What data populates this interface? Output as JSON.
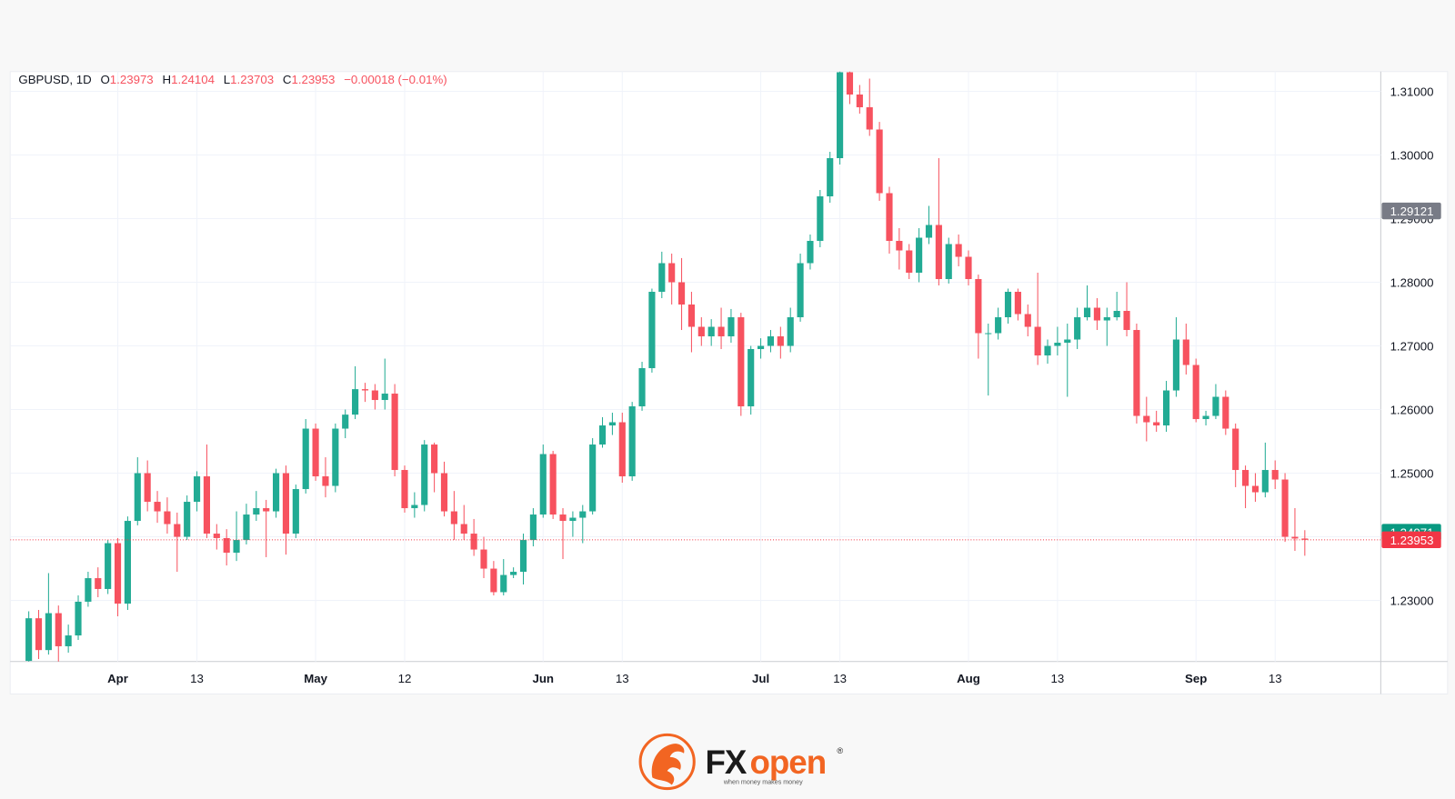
{
  "chart_data": {
    "type": "candlestick",
    "symbol": "GBPUSD, 1D",
    "ohlc_labels": [
      "O",
      "H",
      "L",
      "C"
    ],
    "change": "−0.00018 (−0.01%)",
    "up_color": "#22ab94",
    "down_color": "#f7525f",
    "grid": true,
    "categories": [
      null,
      null,
      null,
      null,
      null,
      null,
      null,
      null,
      null,
      "Apr",
      null,
      null,
      null,
      null,
      null,
      null,
      null,
      "13",
      null,
      null,
      null,
      null,
      null,
      null,
      null,
      null,
      null,
      null,
      null,
      "May",
      null,
      null,
      null,
      null,
      null,
      null,
      null,
      null,
      "12",
      null,
      null,
      null,
      null,
      null,
      null,
      null,
      null,
      null,
      null,
      null,
      null,
      null,
      "Jun",
      null,
      null,
      null,
      null,
      null,
      null,
      null,
      "13",
      null,
      null,
      null,
      null,
      null,
      null,
      null,
      null,
      null,
      null,
      null,
      null,
      null,
      "Jul",
      null,
      null,
      null,
      null,
      null,
      null,
      null,
      "13",
      null,
      null,
      null,
      null,
      null,
      null,
      null,
      null,
      null,
      null,
      null,
      null,
      "Aug",
      null,
      null,
      null,
      null,
      null,
      null,
      null,
      null,
      "13",
      null,
      null,
      null,
      null,
      null,
      null,
      null,
      null,
      null,
      null,
      null,
      null,
      null,
      "Sep",
      null,
      null,
      null,
      null,
      null,
      null,
      null,
      "13",
      null,
      null,
      null
    ],
    "open": [
      1.2205,
      1.2272,
      1.2222,
      1.228,
      1.2228,
      1.2245,
      1.2298,
      1.2335,
      1.2318,
      1.239,
      1.2295,
      1.2425,
      1.25,
      1.2455,
      1.244,
      1.242,
      1.24,
      1.2455,
      1.2495,
      1.2405,
      1.2398,
      1.2375,
      1.2395,
      1.2435,
      1.2445,
      1.244,
      1.25,
      1.2405,
      1.2475,
      1.257,
      1.2495,
      1.248,
      1.257,
      1.2592,
      1.2632,
      1.263,
      1.2615,
      1.2625,
      1.2505,
      1.2445,
      1.245,
      1.2545,
      1.25,
      1.244,
      1.242,
      1.2405,
      1.238,
      1.235,
      1.2313,
      1.234,
      1.2345,
      1.2395,
      1.2435,
      1.253,
      1.2435,
      1.2425,
      1.243,
      1.244,
      1.2545,
      1.2575,
      1.258,
      1.2495,
      1.2605,
      1.2665,
      1.2785,
      1.283,
      1.28,
      1.2765,
      1.273,
      1.2715,
      1.273,
      1.2715,
      1.2745,
      1.2605,
      1.2695,
      1.27,
      1.2715,
      1.27,
      1.2745,
      1.283,
      1.2865,
      1.2935,
      1.2995,
      1.313,
      1.3095,
      1.3075,
      1.304,
      1.294,
      1.2865,
      1.285,
      1.2815,
      1.287,
      1.289,
      1.2805,
      1.286,
      1.284,
      1.2805,
      1.272,
      1.272,
      1.2745,
      1.2785,
      1.275,
      1.273,
      1.2685,
      1.27,
      1.2705,
      1.271,
      1.2745,
      1.276,
      1.274,
      1.2745,
      1.2755,
      1.2725,
      1.259,
      1.258,
      1.2575,
      1.263,
      1.271,
      1.267,
      1.2585,
      1.259,
      1.262,
      1.257,
      1.2505,
      1.248,
      1.247,
      1.2505,
      1.249,
      1.24,
      1.23973
    ],
    "high": [
      1.2283,
      1.2285,
      1.2343,
      1.2292,
      1.2262,
      1.2308,
      1.2345,
      1.2352,
      1.2395,
      1.2398,
      1.2432,
      1.2525,
      1.252,
      1.2472,
      1.2462,
      1.2438,
      1.2465,
      1.2503,
      1.2545,
      1.242,
      1.2412,
      1.244,
      1.2452,
      1.2472,
      1.2458,
      1.2507,
      1.2512,
      1.2482,
      1.2585,
      1.2578,
      1.2525,
      1.2578,
      1.26,
      1.2668,
      1.2642,
      1.264,
      1.268,
      1.264,
      1.2512,
      1.247,
      1.2552,
      1.2548,
      1.2518,
      1.2472,
      1.245,
      1.2428,
      1.24,
      1.2362,
      1.2365,
      1.2352,
      1.2405,
      1.2445,
      1.2545,
      1.2535,
      1.2445,
      1.244,
      1.245,
      1.2555,
      1.2588,
      1.2595,
      1.2595,
      1.2612,
      1.2675,
      1.279,
      1.2848,
      1.2845,
      1.2838,
      1.2785,
      1.2745,
      1.2742,
      1.276,
      1.2758,
      1.2752,
      1.27,
      1.2712,
      1.2725,
      1.273,
      1.276,
      1.2845,
      1.2875,
      1.2945,
      1.3005,
      1.3135,
      1.3142,
      1.311,
      1.312,
      1.3052,
      1.295,
      1.2885,
      1.286,
      1.2885,
      1.292,
      1.2995,
      1.287,
      1.2875,
      1.285,
      1.2812,
      1.2735,
      1.276,
      1.279,
      1.279,
      1.2765,
      1.2815,
      1.271,
      1.273,
      1.2735,
      1.276,
      1.2795,
      1.2775,
      1.276,
      1.2785,
      1.28,
      1.2735,
      1.262,
      1.2598,
      1.2645,
      1.2745,
      1.2735,
      1.268,
      1.2598,
      1.264,
      1.263,
      1.2578,
      1.2512,
      1.25,
      1.2548,
      1.252,
      1.25,
      1.2445,
      1.24104
    ],
    "low": [
      1.2198,
      1.2208,
      1.2215,
      1.22,
      1.2218,
      1.2238,
      1.229,
      1.2305,
      1.231,
      1.2275,
      1.2285,
      1.2418,
      1.244,
      1.2422,
      1.2405,
      1.2345,
      1.2395,
      1.244,
      1.2398,
      1.238,
      1.2355,
      1.2362,
      1.2388,
      1.2425,
      1.2368,
      1.243,
      1.2372,
      1.2398,
      1.2468,
      1.2488,
      1.2462,
      1.247,
      1.2555,
      1.2585,
      1.2612,
      1.26,
      1.26,
      1.2495,
      1.2438,
      1.243,
      1.244,
      1.247,
      1.2432,
      1.2395,
      1.2395,
      1.237,
      1.2335,
      1.2308,
      1.2308,
      1.2335,
      1.2325,
      1.2385,
      1.243,
      1.2428,
      1.2365,
      1.24,
      1.239,
      1.2435,
      1.254,
      1.256,
      1.2485,
      1.2488,
      1.2598,
      1.2658,
      1.2775,
      1.2765,
      1.2725,
      1.269,
      1.27,
      1.27,
      1.2695,
      1.2705,
      1.259,
      1.2592,
      1.268,
      1.269,
      1.268,
      1.269,
      1.2738,
      1.282,
      1.2855,
      1.2925,
      1.2985,
      1.308,
      1.3065,
      1.303,
      1.2928,
      1.2845,
      1.282,
      1.2805,
      1.28,
      1.286,
      1.2795,
      1.2798,
      1.2825,
      1.2795,
      1.268,
      1.2622,
      1.271,
      1.2735,
      1.274,
      1.2715,
      1.267,
      1.2672,
      1.2685,
      1.262,
      1.2695,
      1.274,
      1.2725,
      1.27,
      1.274,
      1.2715,
      1.2578,
      1.255,
      1.2565,
      1.2565,
      1.262,
      1.2655,
      1.258,
      1.2575,
      1.2585,
      1.256,
      1.2478,
      1.2445,
      1.2455,
      1.2462,
      1.2475,
      1.2392,
      1.2378,
      1.23703
    ],
    "close": [
      1.2272,
      1.2222,
      1.228,
      1.2228,
      1.2245,
      1.2298,
      1.2335,
      1.2318,
      1.239,
      1.2295,
      1.2425,
      1.25,
      1.2455,
      1.244,
      1.242,
      1.24,
      1.2455,
      1.2495,
      1.2405,
      1.2398,
      1.2375,
      1.2395,
      1.2435,
      1.2445,
      1.244,
      1.25,
      1.2405,
      1.2475,
      1.257,
      1.2495,
      1.248,
      1.257,
      1.2592,
      1.2632,
      1.263,
      1.2615,
      1.2625,
      1.2505,
      1.2445,
      1.245,
      1.2545,
      1.25,
      1.244,
      1.242,
      1.2405,
      1.238,
      1.235,
      1.2313,
      1.234,
      1.2345,
      1.2395,
      1.2435,
      1.253,
      1.2435,
      1.2425,
      1.243,
      1.244,
      1.2545,
      1.2575,
      1.258,
      1.2495,
      1.2605,
      1.2665,
      1.2785,
      1.283,
      1.28,
      1.2765,
      1.273,
      1.2715,
      1.273,
      1.2715,
      1.2745,
      1.2605,
      1.2695,
      1.27,
      1.2715,
      1.27,
      1.2745,
      1.283,
      1.2865,
      1.2935,
      1.2995,
      1.313,
      1.3095,
      1.3075,
      1.304,
      1.294,
      1.2865,
      1.285,
      1.2815,
      1.287,
      1.289,
      1.2805,
      1.286,
      1.284,
      1.2805,
      1.272,
      1.272,
      1.2745,
      1.2785,
      1.275,
      1.273,
      1.2685,
      1.27,
      1.2705,
      1.271,
      1.2745,
      1.276,
      1.274,
      1.2745,
      1.2755,
      1.2725,
      1.259,
      1.258,
      1.2575,
      1.263,
      1.271,
      1.267,
      1.2585,
      1.259,
      1.262,
      1.257,
      1.2505,
      1.248,
      1.247,
      1.2505,
      1.249,
      1.24,
      1.23973,
      1.23953
    ],
    "ylim": [
      1.2204,
      1.3131
    ],
    "yticks": [
      {
        "value": 1.31,
        "label": "1.31000"
      },
      {
        "value": 1.3,
        "label": "1.30000"
      },
      {
        "value": 1.29,
        "label": "1.29000"
      },
      {
        "value": 1.28,
        "label": "1.28000"
      },
      {
        "value": 1.27,
        "label": "1.27000"
      },
      {
        "value": 1.26,
        "label": "1.26000"
      },
      {
        "value": 1.25,
        "label": "1.25000"
      },
      {
        "value": 1.24,
        "label": "1.24000"
      },
      {
        "value": 1.23,
        "label": "1.23000"
      }
    ],
    "markers": [
      {
        "value": 1.29121,
        "color": "#787b86"
      },
      {
        "value": 1.24071,
        "color": "#089981"
      },
      {
        "value": 1.23953,
        "color": "#f23645",
        "line": "dotted"
      }
    ]
  },
  "logo": {
    "brand_fx": "FX",
    "brand_open": "open",
    "registered": "®",
    "tagline": "when money makes money"
  }
}
